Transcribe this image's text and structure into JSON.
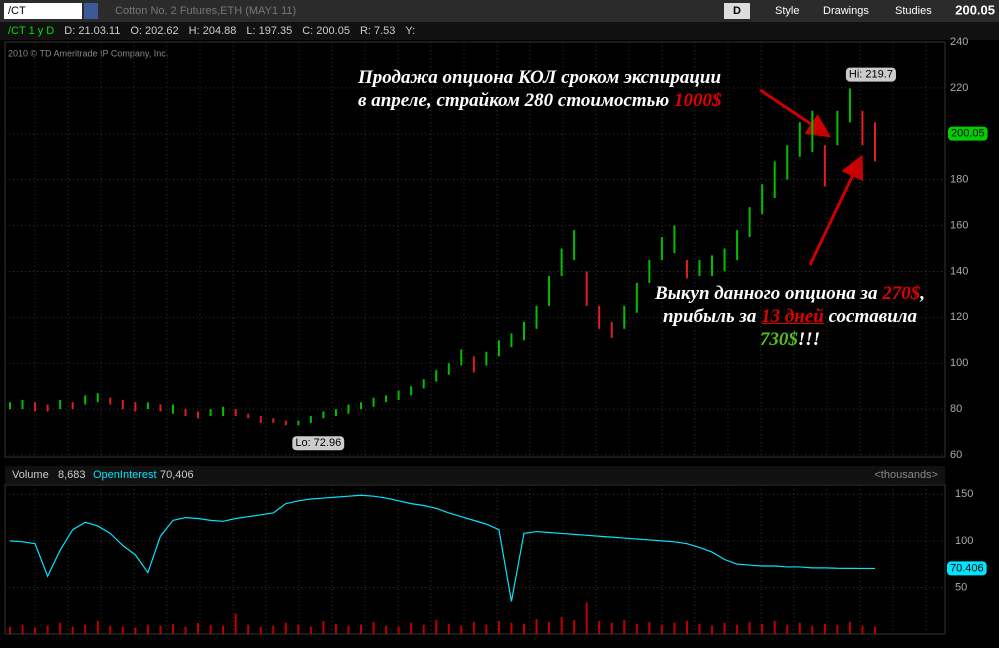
{
  "toolbar": {
    "symbol": "/CT",
    "description": "Cotton No. 2 Futures,ETH (MAY1 11)",
    "period": "D",
    "style": "Style",
    "drawings": "Drawings",
    "studies": "Studies",
    "last": "200.05"
  },
  "info_bar": [
    "/CT 1 y D",
    "D: 21.03.11",
    "O: 202.62",
    "H: 204.88",
    "L: 197.35",
    "C: 200.05",
    "R: 7.53",
    "Y:"
  ],
  "copyright": "2010 © TD Ameritrade IP Company, Inc.",
  "annotations": {
    "sell": [
      [
        "Продажа опциона КОЛ сроком экспирации"
      ],
      [
        "в апреле, страйком 280 стоимостью ",
        "1000$"
      ]
    ],
    "buy": [
      [
        "Выкуп данного опциона за ",
        "270$",
        ","
      ],
      [
        "прибыль за ",
        "13 дней",
        " составила"
      ],
      [
        "730$",
        "!!!"
      ]
    ],
    "hi": "Hi: 219.7",
    "lo": "Lo: 72.96"
  },
  "chart_data": [
    {
      "type": "ohlc",
      "up_color": "#00c000",
      "down_color": "#e02020",
      "last": 200.05,
      "ylim": [
        60,
        240
      ],
      "yticks": [
        60,
        80,
        100,
        120,
        140,
        160,
        180,
        200,
        220,
        240
      ],
      "grid": true,
      "highs": [
        83,
        84,
        83,
        82,
        84,
        83,
        86,
        87,
        85,
        84,
        83,
        83,
        82,
        82,
        80,
        79,
        80,
        81,
        80,
        78,
        77,
        76,
        75,
        75,
        77,
        79,
        80,
        82,
        83,
        85,
        86,
        88,
        90,
        93,
        97,
        100,
        106,
        103,
        105,
        110,
        113,
        118,
        125,
        138,
        150,
        158,
        140,
        125,
        118,
        125,
        135,
        145,
        155,
        160,
        145,
        145,
        147,
        150,
        158,
        168,
        178,
        188,
        195,
        205,
        210,
        195,
        210,
        219.7,
        210,
        205
      ],
      "lows": [
        80,
        80,
        79,
        79,
        80,
        80,
        82,
        83,
        82,
        80,
        79,
        80,
        79,
        78,
        77,
        76,
        77,
        77,
        77,
        76,
        74,
        74,
        73,
        72.96,
        74,
        76,
        77,
        78,
        80,
        81,
        83,
        84,
        86,
        89,
        92,
        95,
        99,
        96,
        99,
        103,
        107,
        110,
        115,
        125,
        138,
        145,
        125,
        115,
        111,
        115,
        122,
        135,
        145,
        148,
        137,
        138,
        138,
        140,
        145,
        155,
        165,
        172,
        180,
        190,
        192,
        177,
        195,
        205,
        195,
        188
      ]
    },
    {
      "type": "bar",
      "title": "Volume",
      "volume_label": "8,683",
      "oi_title": "OpenInterest",
      "oi_label": "70,406",
      "units": "<thousands>",
      "last_open_interest": 70.406,
      "ylim": [
        0,
        160
      ],
      "yticks": [
        50,
        100,
        150
      ],
      "bar_color": "#c00000",
      "line_color": "#00e5ff",
      "volume": [
        8,
        10,
        7,
        9,
        12,
        8,
        10,
        14,
        9,
        8,
        7,
        10,
        9,
        11,
        8,
        12,
        10,
        9,
        22,
        10,
        8,
        9,
        12,
        10,
        8,
        14,
        11,
        9,
        10,
        13,
        9,
        8,
        12,
        10,
        15,
        11,
        9,
        13,
        10,
        14,
        12,
        11,
        16,
        13,
        18,
        15,
        34,
        14,
        12,
        15,
        11,
        13,
        10,
        12,
        14,
        11,
        9,
        12,
        10,
        13,
        11,
        14,
        10,
        12,
        9,
        11,
        10,
        13,
        9,
        8
      ],
      "open_interest": [
        100,
        99,
        97,
        62,
        90,
        112,
        120,
        116,
        108,
        95,
        85,
        66,
        105,
        122,
        125,
        124,
        122,
        121,
        124,
        126,
        128,
        130,
        140,
        143,
        145,
        146,
        147,
        148,
        149,
        148,
        146,
        143,
        140,
        138,
        135,
        130,
        126,
        122,
        118,
        112,
        35,
        108,
        110,
        109,
        108,
        107,
        106,
        105,
        104,
        103,
        102,
        101,
        100,
        99,
        97,
        93,
        88,
        80,
        75,
        74,
        73,
        73,
        72,
        72,
        71,
        71,
        70.6,
        70.5,
        70.4,
        70.406
      ]
    }
  ]
}
